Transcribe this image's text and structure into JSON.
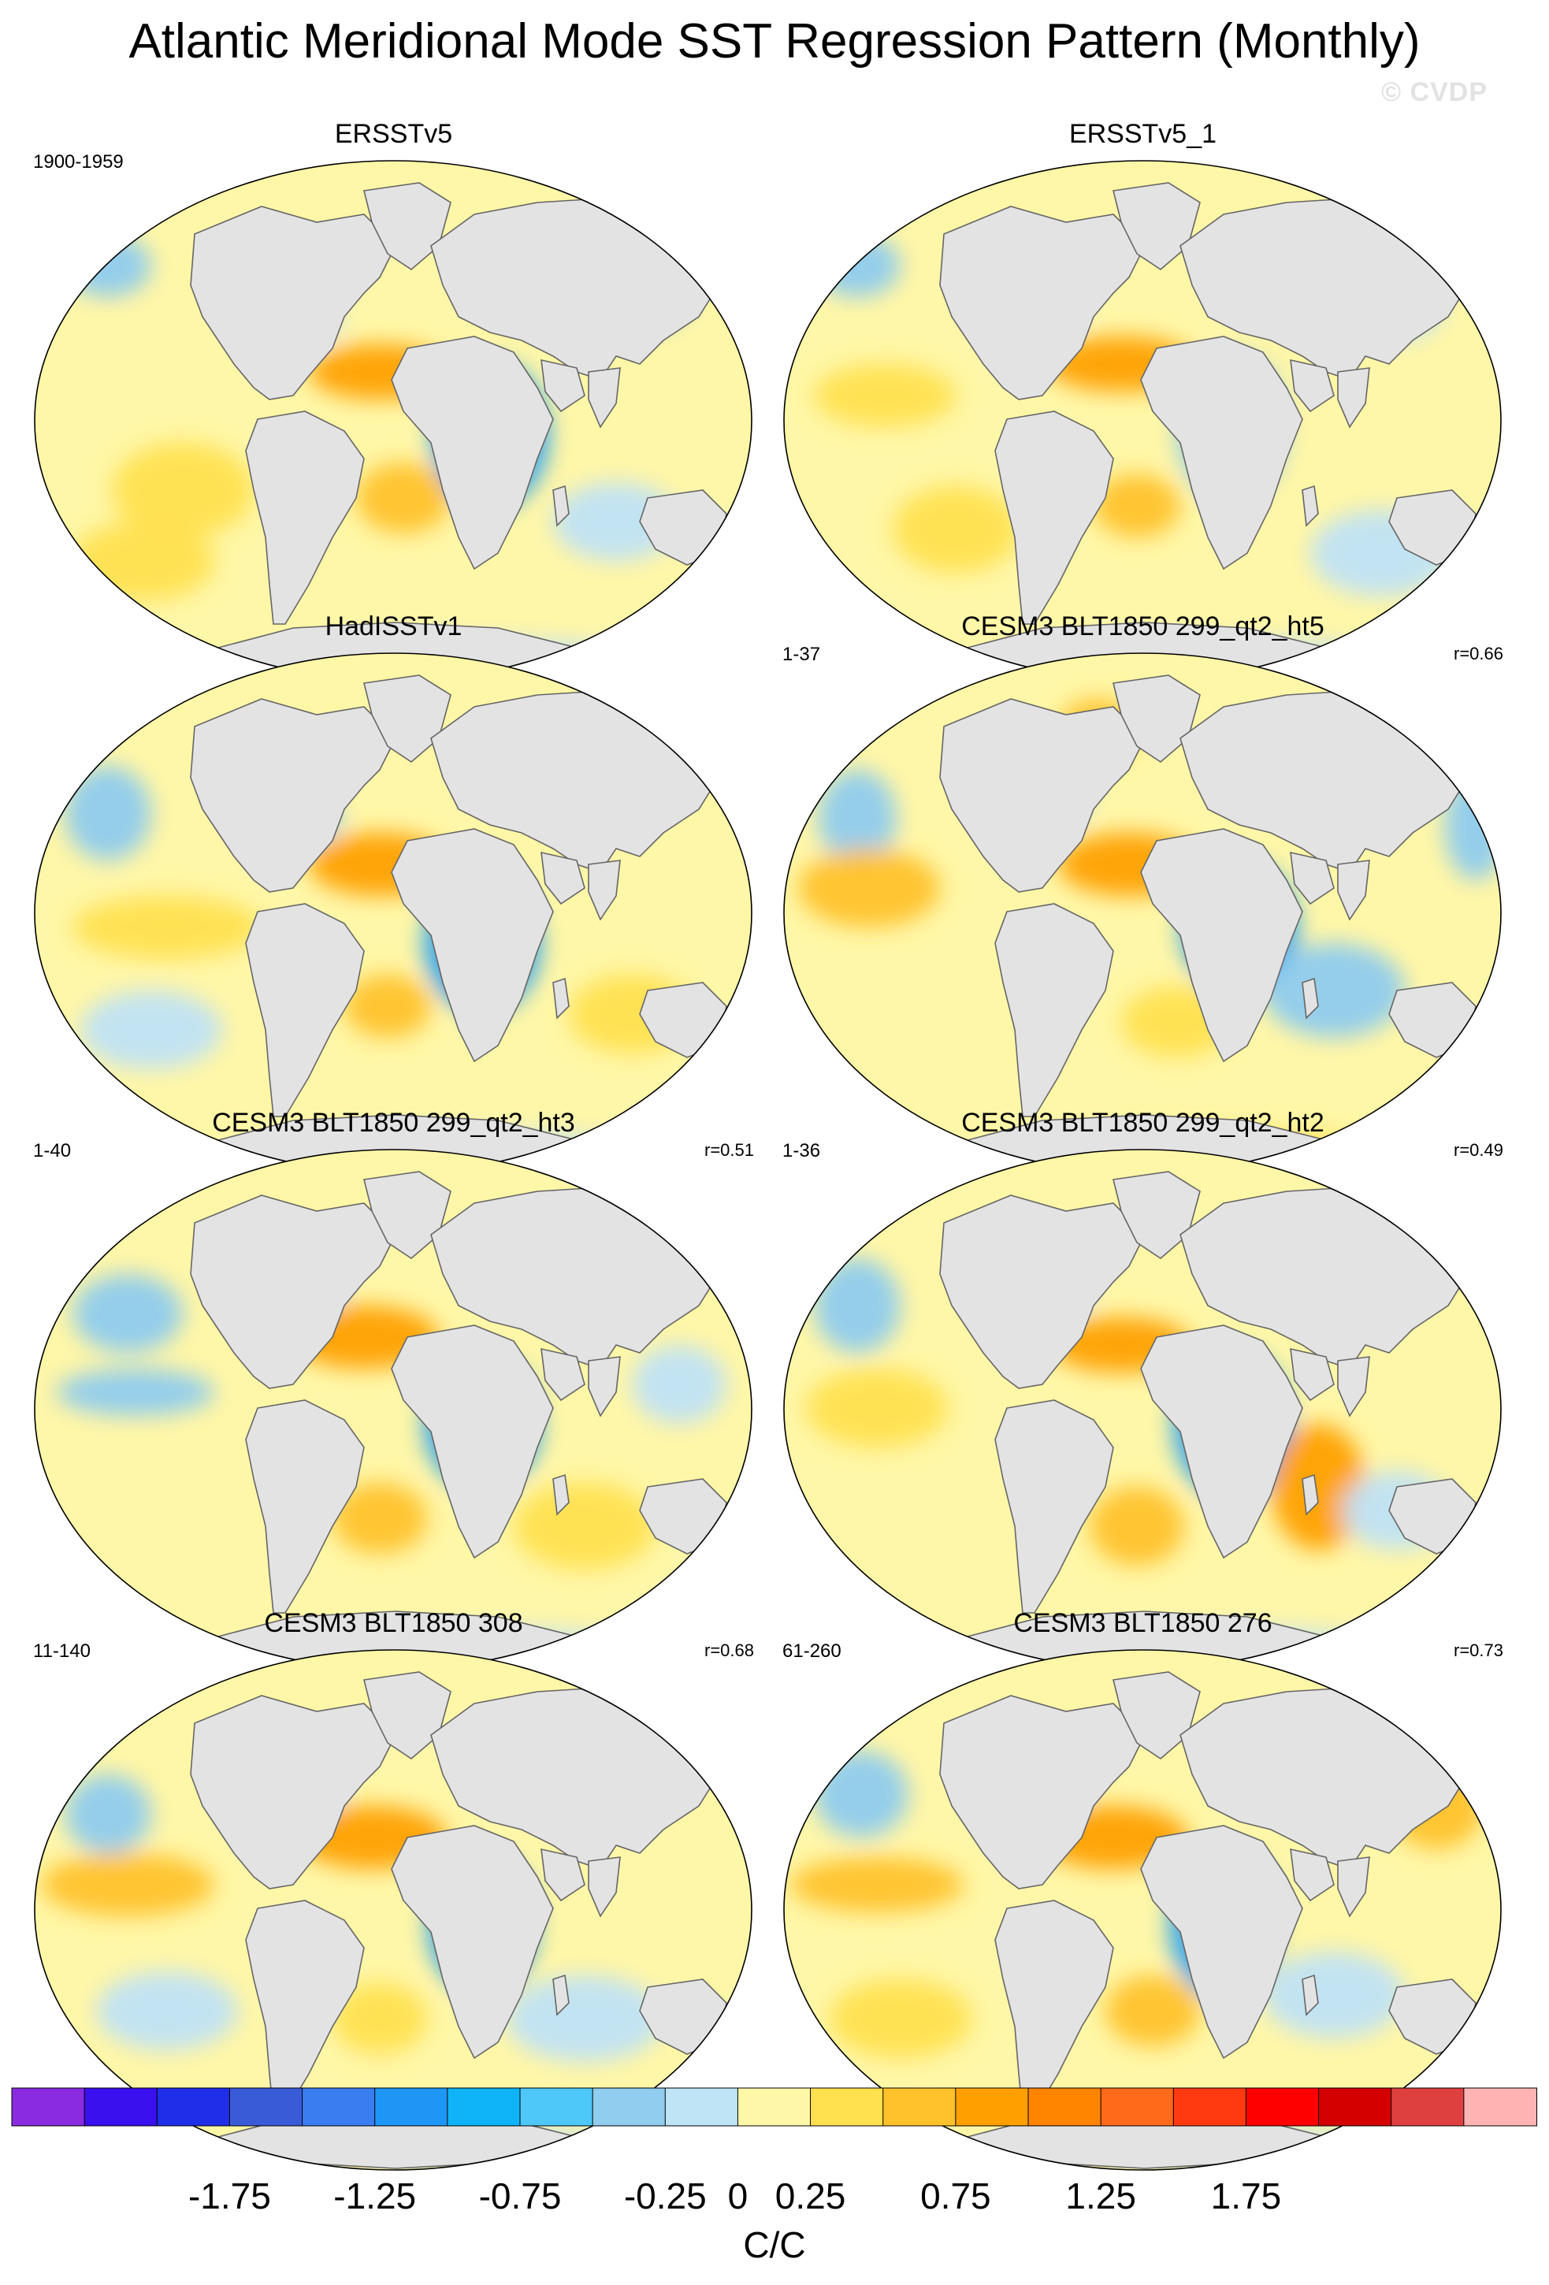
{
  "title": "Atlantic Meridional Mode SST Regression Pattern (Monthly)",
  "watermark": "© CVDP",
  "colors": {
    "land": "#e3e3e3",
    "coast": "#666666",
    "ocean_neutral": "#fff7a8",
    "warm_light": "#ffe04f",
    "warm_mid": "#ffc22a",
    "warm_strong": "#ffa000",
    "cool_light": "#bfe2f5",
    "cool_mid": "#8ecbee",
    "cool_strong": "#2fa2f0"
  },
  "panels": [
    {
      "title": "ERSSTv5",
      "years": "1900-1959",
      "corr": ""
    },
    {
      "title": "ERSSTv5_1",
      "years": "",
      "corr": ""
    },
    {
      "title": "HadISSTv1",
      "years": "",
      "corr": ""
    },
    {
      "title": "CESM3 BLT1850 299_qt2_ht5",
      "years": "1-37",
      "corr": "r=0.66"
    },
    {
      "title": "CESM3 BLT1850 299_qt2_ht3",
      "years": "1-40",
      "corr": "r=0.51"
    },
    {
      "title": "CESM3 BLT1850 299_qt2_ht2",
      "years": "1-36",
      "corr": "r=0.49"
    },
    {
      "title": "CESM3 BLT1850 308",
      "years": "11-140",
      "corr": "r=0.68"
    },
    {
      "title": "CESM3 BLT1850 276",
      "years": "61-260",
      "corr": "r=0.73"
    }
  ],
  "chart_data": {
    "type": "heatmap",
    "projection": "Robinson",
    "variable": "SST regression on Atlantic Meridional Mode",
    "colorbar": {
      "unit_label": "C/C",
      "colors": [
        "#8a2be2",
        "#3a10ee",
        "#1f2ee8",
        "#3a5bd8",
        "#3a7df0",
        "#1e96f6",
        "#0fb4f8",
        "#4ec8f8",
        "#90cdee",
        "#bfe4f5",
        "#fff7a8",
        "#ffe04f",
        "#ffc22a",
        "#ffa000",
        "#ff8400",
        "#ff6a1a",
        "#ff3a10",
        "#ff0000",
        "#d40000",
        "#de4040",
        "#ffb3b3"
      ],
      "tick_values": [
        -1.75,
        -1.25,
        -0.75,
        -0.25,
        0,
        0.25,
        0.75,
        1.25,
        1.75
      ],
      "tick_labels": [
        "-1.75",
        "-1.25",
        "-0.75",
        "-0.25",
        "0",
        "0.25",
        "0.75",
        "1.25",
        "1.75"
      ]
    }
  }
}
